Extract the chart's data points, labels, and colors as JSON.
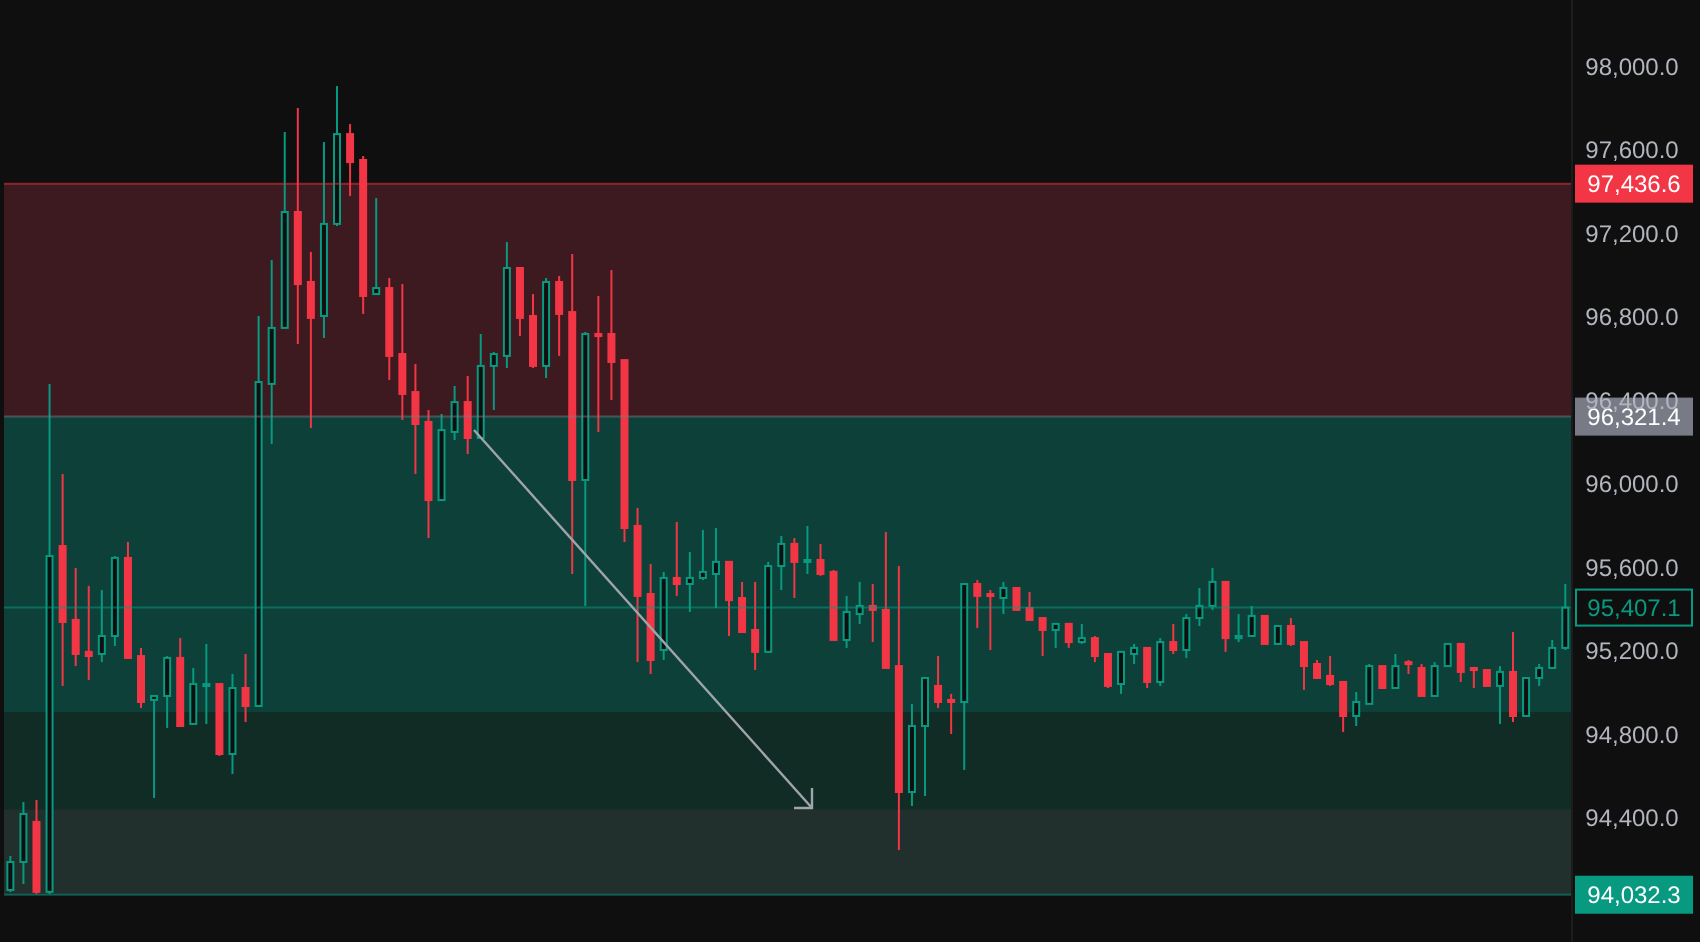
{
  "chart_data": {
    "type": "candlestick",
    "categories": [
      null,
      null,
      null,
      null,
      null,
      null,
      null,
      null,
      null,
      null,
      null,
      null,
      null,
      null,
      null,
      null,
      null,
      null,
      null,
      null,
      null,
      null,
      null,
      null,
      null,
      null,
      null,
      null,
      null,
      null,
      null,
      null,
      null,
      null,
      null,
      null,
      null,
      null,
      null,
      null,
      null,
      null,
      null,
      null,
      null,
      null,
      null,
      null,
      null,
      null,
      null,
      null,
      null,
      null,
      null,
      null,
      null,
      null,
      null,
      null,
      null,
      null,
      null,
      null,
      null,
      null,
      null,
      null,
      null,
      null,
      null,
      null,
      null,
      null,
      null,
      null,
      null,
      null,
      null,
      null,
      null,
      null,
      null,
      null,
      null,
      null,
      null,
      null,
      null,
      null,
      null,
      null,
      null,
      null,
      null,
      null,
      null,
      null,
      null,
      null,
      null,
      null,
      null,
      null,
      null,
      null,
      null,
      null,
      null,
      null,
      null,
      null,
      null,
      null,
      null,
      null,
      null,
      null,
      null,
      null
    ],
    "ohlc": [
      [
        94055,
        94218,
        94045,
        94189
      ],
      [
        94189,
        94476,
        94084,
        94419
      ],
      [
        94381,
        94486,
        94036,
        94046
      ],
      [
        94046,
        96478,
        94036,
        95654
      ],
      [
        95702,
        96047,
        95032,
        95338
      ],
      [
        95348,
        95597,
        95127,
        95185
      ],
      [
        95195,
        95511,
        95060,
        95175
      ],
      [
        95185,
        95491,
        95146,
        95271
      ],
      [
        95271,
        95654,
        95223,
        95645
      ],
      [
        95645,
        95721,
        95166,
        95166
      ],
      [
        95175,
        95214,
        94926,
        94955
      ],
      [
        94965,
        94984,
        94496,
        94984
      ],
      [
        94984,
        95175,
        94831,
        95166
      ],
      [
        95166,
        95261,
        94840,
        94840
      ],
      [
        94850,
        95118,
        94850,
        95041
      ],
      [
        95032,
        95233,
        94850,
        95041
      ],
      [
        95041,
        95041,
        94697,
        94706
      ],
      [
        94706,
        95089,
        94610,
        95022
      ],
      [
        95022,
        95185,
        94859,
        94936
      ],
      [
        94936,
        96803,
        94936,
        96487
      ],
      [
        96478,
        97071,
        96190,
        96746
      ],
      [
        96746,
        97684,
        96746,
        97301
      ],
      [
        97301,
        97799,
        96669,
        96956
      ],
      [
        96966,
        97110,
        96267,
        96794
      ],
      [
        96803,
        97636,
        96698,
        97244
      ],
      [
        97244,
        97904,
        97234,
        97674
      ],
      [
        97674,
        97722,
        97378,
        97540
      ],
      [
        97550,
        97569,
        96813,
        96899
      ],
      [
        96908,
        97368,
        96908,
        96937
      ],
      [
        96937,
        96985,
        96497,
        96612
      ],
      [
        96621,
        96956,
        96305,
        96430
      ],
      [
        96439,
        96573,
        96047,
        96286
      ],
      [
        96296,
        96353,
        95740,
        95922
      ],
      [
        95922,
        96334,
        95922,
        96257
      ],
      [
        96248,
        96468,
        96209,
        96391
      ],
      [
        96391,
        96516,
        96142,
        96219
      ],
      [
        96219,
        96717,
        96219,
        96564
      ],
      [
        96564,
        96631,
        96353,
        96621
      ],
      [
        96612,
        97157,
        96554,
        97033
      ],
      [
        97033,
        97033,
        96707,
        96794
      ],
      [
        96803,
        96908,
        96554,
        96564
      ],
      [
        96564,
        96985,
        96506,
        96966
      ],
      [
        96966,
        96995,
        96612,
        96813
      ],
      [
        96822,
        97100,
        95568,
        96018
      ],
      [
        96018,
        96726,
        95415,
        96717
      ],
      [
        96717,
        96899,
        96248,
        96707
      ],
      [
        96717,
        97023,
        96401,
        96583
      ],
      [
        96592,
        96592,
        95721,
        95788
      ],
      [
        95798,
        95884,
        95146,
        95463
      ],
      [
        95472,
        95616,
        95089,
        95156
      ],
      [
        95204,
        95578,
        95156,
        95549
      ],
      [
        95549,
        95817,
        95463,
        95520
      ],
      [
        95520,
        95673,
        95386,
        95549
      ],
      [
        95549,
        95779,
        95539,
        95578
      ],
      [
        95568,
        95788,
        95405,
        95626
      ],
      [
        95626,
        95626,
        95271,
        95443
      ],
      [
        95453,
        95530,
        95290,
        95290
      ],
      [
        95300,
        95530,
        95108,
        95195
      ],
      [
        95195,
        95626,
        95195,
        95606
      ],
      [
        95606,
        95750,
        95491,
        95712
      ],
      [
        95712,
        95740,
        95453,
        95626
      ],
      [
        95626,
        95798,
        95568,
        95635
      ],
      [
        95635,
        95712,
        95559,
        95568
      ],
      [
        95578,
        95587,
        95252,
        95252
      ],
      [
        95252,
        95463,
        95214,
        95386
      ],
      [
        95376,
        95530,
        95329,
        95415
      ],
      [
        95415,
        95520,
        95242,
        95396
      ],
      [
        95396,
        95769,
        95118,
        95118
      ],
      [
        95127,
        95606,
        94247,
        94524
      ],
      [
        94524,
        94946,
        94457,
        94840
      ],
      [
        94840,
        95070,
        94505,
        95070
      ],
      [
        95032,
        95175,
        94926,
        94955
      ],
      [
        94965,
        94994,
        94802,
        94955
      ],
      [
        94955,
        95520,
        94630,
        95520
      ],
      [
        95520,
        95539,
        95309,
        95463
      ],
      [
        95472,
        95491,
        95204,
        95463
      ],
      [
        95453,
        95530,
        95376,
        95501
      ],
      [
        95501,
        95501,
        95396,
        95396
      ],
      [
        95405,
        95482,
        95348,
        95348
      ],
      [
        95357,
        95357,
        95175,
        95300
      ],
      [
        95300,
        95329,
        95214,
        95329
      ],
      [
        95329,
        95329,
        95214,
        95242
      ],
      [
        95242,
        95329,
        95233,
        95261
      ],
      [
        95261,
        95271,
        95146,
        95175
      ],
      [
        95185,
        95185,
        95022,
        95032
      ],
      [
        95041,
        95195,
        94994,
        95195
      ],
      [
        95185,
        95233,
        95137,
        95214
      ],
      [
        95214,
        95214,
        95022,
        95051
      ],
      [
        95051,
        95261,
        95032,
        95242
      ],
      [
        95242,
        95329,
        95185,
        95204
      ],
      [
        95204,
        95376,
        95166,
        95357
      ],
      [
        95357,
        95501,
        95319,
        95415
      ],
      [
        95415,
        95597,
        95396,
        95530
      ],
      [
        95530,
        95530,
        95195,
        95261
      ],
      [
        95261,
        95376,
        95242,
        95271
      ],
      [
        95271,
        95415,
        95271,
        95367
      ],
      [
        95367,
        95367,
        95233,
        95233
      ],
      [
        95233,
        95319,
        95233,
        95319
      ],
      [
        95319,
        95357,
        95223,
        95233
      ],
      [
        95242,
        95242,
        95013,
        95127
      ],
      [
        95137,
        95156,
        95070,
        95070
      ],
      [
        95080,
        95175,
        95032,
        95041
      ],
      [
        95051,
        95051,
        94811,
        94888
      ],
      [
        94888,
        95003,
        94840,
        94955
      ],
      [
        94946,
        95137,
        94946,
        95127
      ],
      [
        95127,
        95127,
        95022,
        95022
      ],
      [
        95022,
        95185,
        95022,
        95127
      ],
      [
        95146,
        95156,
        95089,
        95137
      ],
      [
        95118,
        95137,
        94984,
        94984
      ],
      [
        94984,
        95146,
        94984,
        95127
      ],
      [
        95127,
        95233,
        95127,
        95233
      ],
      [
        95233,
        95233,
        95051,
        95099
      ],
      [
        95118,
        95118,
        95022,
        95108
      ],
      [
        95108,
        95108,
        95032,
        95032
      ],
      [
        95032,
        95127,
        94850,
        95099
      ],
      [
        95099,
        95290,
        94859,
        94888
      ],
      [
        94888,
        95070,
        94888,
        95070
      ],
      [
        95070,
        95137,
        95032,
        95118
      ],
      [
        95118,
        95252,
        95118,
        95214
      ],
      [
        95214,
        95520,
        95204,
        95407.1
      ]
    ],
    "colors": [
      "#089981",
      "#089981",
      "#f23645",
      "#089981",
      "#f23645",
      "#f23645",
      "#f23645",
      "#089981",
      "#089981",
      "#f23645",
      "#f23645",
      "#089981",
      "#089981",
      "#f23645",
      "#089981",
      "#089981",
      "#f23645",
      "#089981",
      "#f23645",
      "#089981",
      "#089981",
      "#089981",
      "#f23645",
      "#f23645",
      "#089981",
      "#089981",
      "#f23645",
      "#f23645",
      "#089981",
      "#f23645",
      "#f23645",
      "#f23645",
      "#f23645",
      "#089981",
      "#089981",
      "#f23645",
      "#089981",
      "#089981",
      "#089981",
      "#f23645",
      "#f23645",
      "#089981",
      "#f23645",
      "#f23645",
      "#089981",
      "#f23645",
      "#f23645",
      "#f23645",
      "#f23645",
      "#f23645",
      "#089981",
      "#f23645",
      "#089981",
      "#089981",
      "#089981",
      "#f23645",
      "#f23645",
      "#f23645",
      "#089981",
      "#089981",
      "#f23645",
      "#089981",
      "#f23645",
      "#f23645",
      "#089981",
      "#089981",
      "#f23645",
      "#f23645",
      "#f23645",
      "#089981",
      "#089981",
      "#f23645",
      "#f23645",
      "#089981",
      "#f23645",
      "#f23645",
      "#089981",
      "#f23645",
      "#f23645",
      "#f23645",
      "#089981",
      "#f23645",
      "#089981",
      "#f23645",
      "#f23645",
      "#089981",
      "#089981",
      "#f23645",
      "#089981",
      "#f23645",
      "#089981",
      "#089981",
      "#089981",
      "#f23645",
      "#089981",
      "#089981",
      "#f23645",
      "#089981",
      "#f23645",
      "#f23645",
      "#f23645",
      "#f23645",
      "#f23645",
      "#089981",
      "#089981",
      "#f23645",
      "#089981",
      "#f23645",
      "#f23645",
      "#089981",
      "#089981",
      "#f23645",
      "#f23645",
      "#f23645",
      "#089981",
      "#f23645",
      "#089981",
      "#089981",
      "#089981",
      "#089981"
    ],
    "ylim": [
      93806,
      98316
    ],
    "yticks": [
      {
        "value": 94400,
        "label": "94,400.0"
      },
      {
        "value": 94800,
        "label": "94,800.0"
      },
      {
        "value": 95200,
        "label": "95,200.0"
      },
      {
        "value": 95600,
        "label": "95,600.0"
      },
      {
        "value": 96000,
        "label": "96,000.0"
      },
      {
        "value": 96400,
        "label": "96,400.0"
      },
      {
        "value": 96800,
        "label": "96,800.0"
      },
      {
        "value": 97200,
        "label": "97,200.0"
      },
      {
        "value": 97600,
        "label": "97,600.0"
      },
      {
        "value": 98000,
        "label": "98,000.0"
      }
    ],
    "tick_labels": "y",
    "grid": false,
    "legend": false,
    "bands": [
      {
        "axis": "y",
        "from": 96321.4,
        "to": 97436.6,
        "color": "#3d1a1f"
      },
      {
        "axis": "y",
        "from": 94907,
        "to": 96321.4,
        "color": "#0d4038"
      },
      {
        "axis": "y",
        "from": 94032.3,
        "to": 94907,
        "color": "#112b25"
      },
      {
        "axis": "y",
        "from": 94032.3,
        "to": 94440,
        "color": "#22302d"
      }
    ],
    "ref_lines": [
      {
        "axis": "y",
        "value": 97436.6,
        "label": "97,436.6",
        "color": "#f23645"
      },
      {
        "axis": "y",
        "value": 96321.4,
        "label": "96,321.4",
        "color": "#787b86"
      },
      {
        "axis": "y",
        "value": 95407.1,
        "label": "95,407.1",
        "color": "#089981"
      },
      {
        "axis": "y",
        "value": 94032.3,
        "label": "94,032.3",
        "color": "#089981"
      }
    ]
  }
}
